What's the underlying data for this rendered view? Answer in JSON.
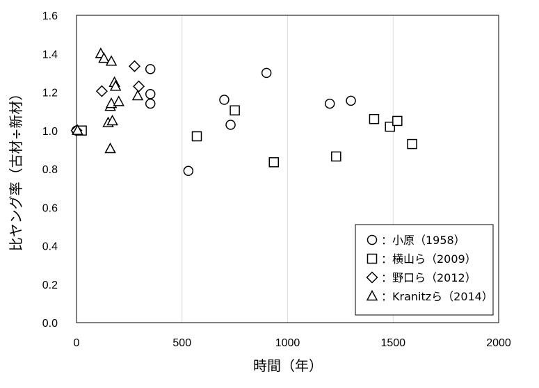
{
  "chart_data": {
    "type": "scatter",
    "xlabel": "時間（年）",
    "ylabel": "比ヤング率（古材÷新材）",
    "xlim": [
      0,
      2000
    ],
    "ylim": [
      0.0,
      1.6
    ],
    "x_ticks": [
      "0",
      "500",
      "1000",
      "1500",
      "2000"
    ],
    "y_ticks": [
      "0.0",
      "0.2",
      "0.4",
      "0.6",
      "0.8",
      "1.0",
      "1.2",
      "1.4",
      "1.6"
    ],
    "grid": "vertical",
    "legend_position": "bottom-right",
    "series": [
      {
        "name": "：小原（1958）",
        "marker": "circle",
        "points": [
          [
            0,
            1.0
          ],
          [
            350,
            1.32
          ],
          [
            350,
            1.19
          ],
          [
            350,
            1.14
          ],
          [
            530,
            0.79
          ],
          [
            700,
            1.16
          ],
          [
            730,
            1.03
          ],
          [
            900,
            1.3
          ],
          [
            1200,
            1.14
          ],
          [
            1300,
            1.155
          ]
        ]
      },
      {
        "name": "：横山ら（2009）",
        "marker": "square",
        "points": [
          [
            25,
            1.0
          ],
          [
            570,
            0.97
          ],
          [
            750,
            1.105
          ],
          [
            935,
            0.835
          ],
          [
            1230,
            0.865
          ],
          [
            1410,
            1.06
          ],
          [
            1485,
            1.02
          ],
          [
            1520,
            1.05
          ],
          [
            1590,
            0.93
          ]
        ]
      },
      {
        "name": "：野口ら（2012）",
        "marker": "diamond",
        "points": [
          [
            0,
            1.0
          ],
          [
            120,
            1.205
          ],
          [
            275,
            1.335
          ],
          [
            295,
            1.23
          ]
        ]
      },
      {
        "name": "：Kranitzら（2014）",
        "marker": "triangle",
        "points": [
          [
            5,
            1.0
          ],
          [
            115,
            1.4
          ],
          [
            130,
            1.375
          ],
          [
            150,
            1.04
          ],
          [
            160,
            1.125
          ],
          [
            160,
            0.905
          ],
          [
            165,
            1.14
          ],
          [
            165,
            1.36
          ],
          [
            170,
            1.05
          ],
          [
            180,
            1.25
          ],
          [
            185,
            1.23
          ],
          [
            200,
            1.15
          ],
          [
            290,
            1.18
          ]
        ]
      }
    ]
  }
}
